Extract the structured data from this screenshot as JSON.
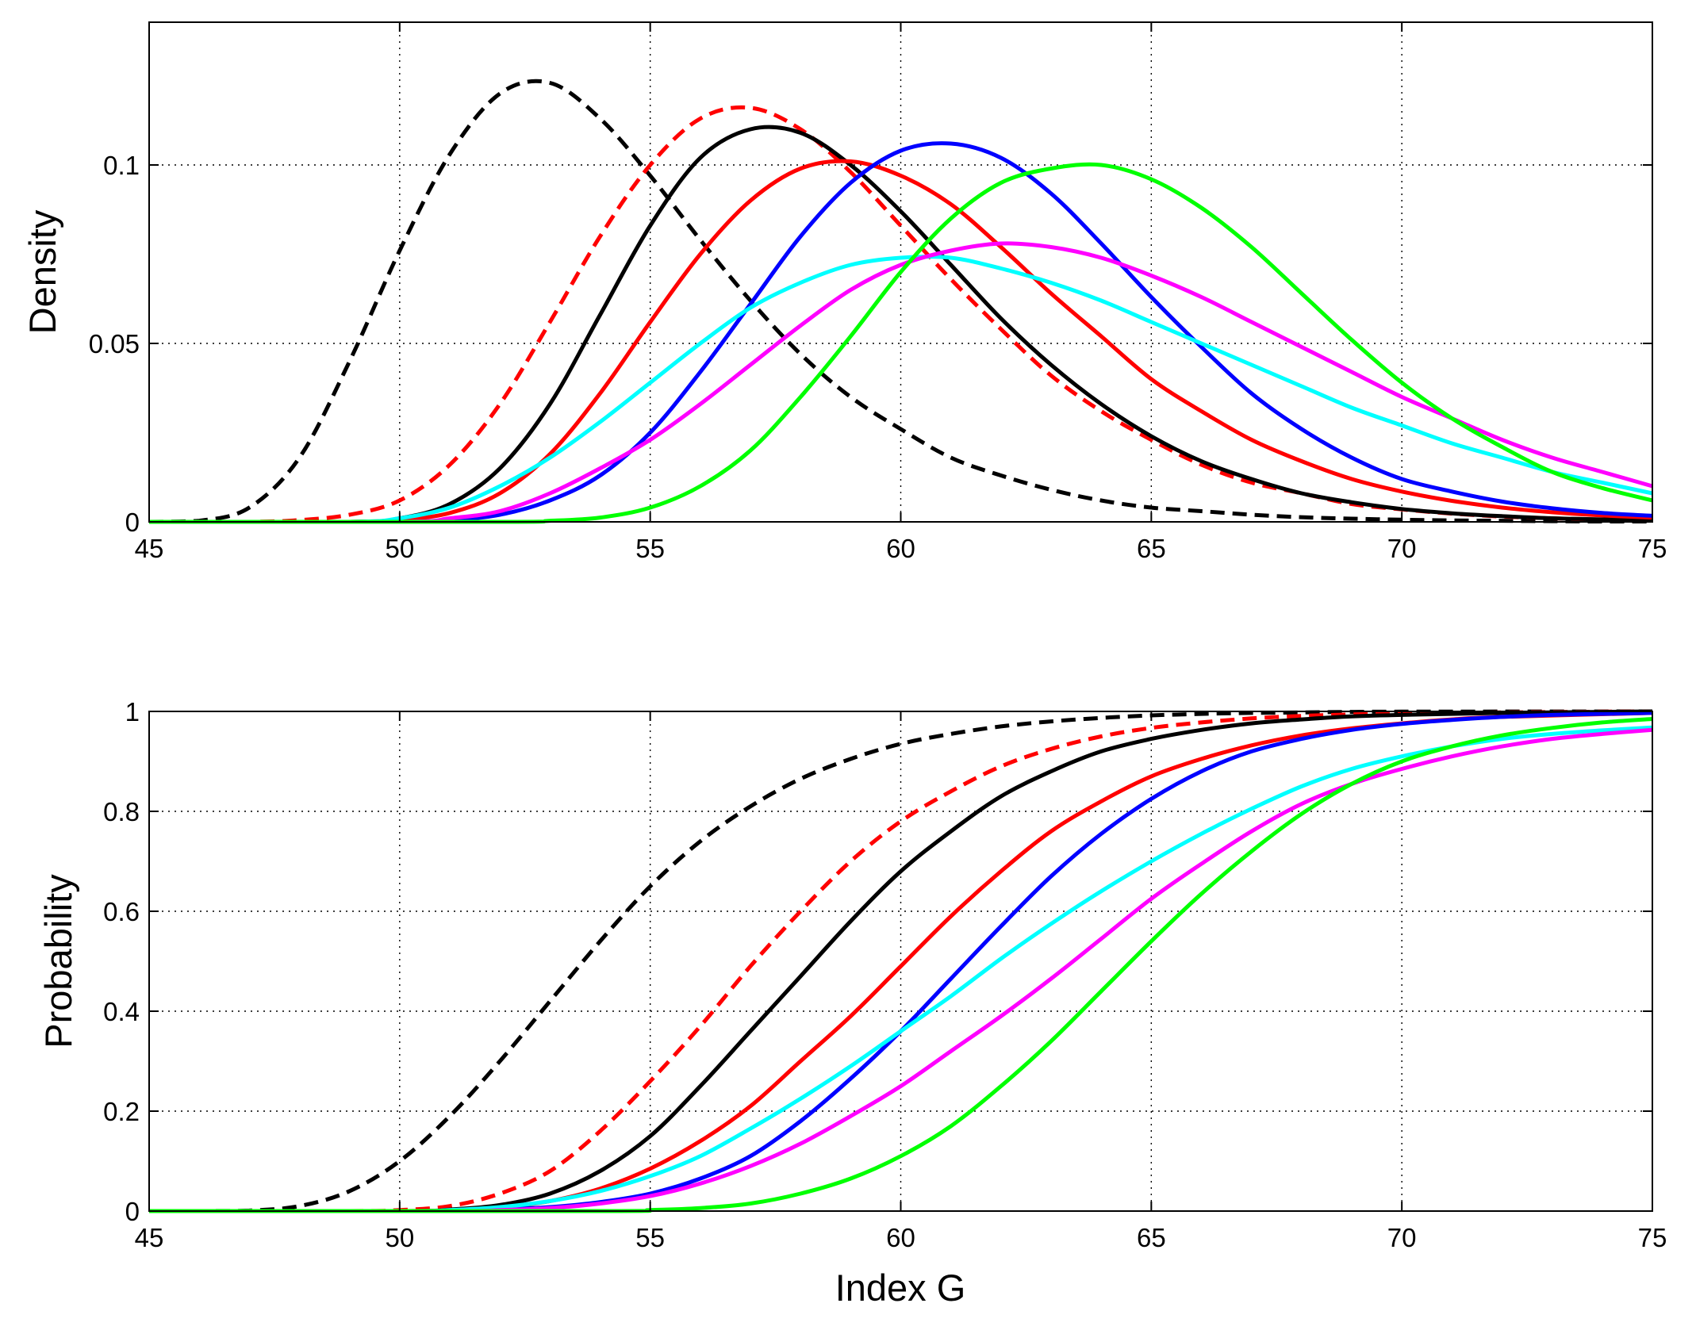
{
  "chart_data": [
    {
      "type": "line",
      "title": "",
      "xlabel": "",
      "ylabel": "Density",
      "xlim": [
        45,
        75
      ],
      "ylim": [
        0,
        0.14
      ],
      "xticks": [
        "45",
        "50",
        "55",
        "60",
        "65",
        "70",
        "75"
      ],
      "yticks": [
        "0",
        "0.05",
        "0.1"
      ],
      "ytick_values": [
        0,
        0.05,
        0.1
      ],
      "grid": true,
      "series": [
        {
          "name": "black-dashed",
          "color": "#000000",
          "style": "dashed",
          "x": [
            45,
            46,
            47,
            48,
            49,
            50,
            51,
            52,
            53,
            54,
            55,
            56,
            57,
            58,
            59,
            60,
            61,
            62,
            63,
            64,
            65,
            66,
            67,
            68,
            69,
            70,
            71,
            72,
            73,
            74,
            75
          ],
          "y": [
            0,
            0.0003,
            0.004,
            0.018,
            0.045,
            0.076,
            0.103,
            0.12,
            0.123,
            0.113,
            0.097,
            0.079,
            0.062,
            0.047,
            0.035,
            0.026,
            0.018,
            0.013,
            0.009,
            0.006,
            0.004,
            0.003,
            0.002,
            0.0013,
            0.0009,
            0.0006,
            0.0004,
            0.0003,
            0.0002,
            0.0001,
            0.0001
          ]
        },
        {
          "name": "red-dashed",
          "color": "#ff0000",
          "style": "dashed",
          "x": [
            45,
            47,
            48,
            49,
            50,
            51,
            52,
            53,
            54,
            55,
            56,
            57,
            58,
            59,
            60,
            61,
            62,
            63,
            64,
            65,
            66,
            67,
            68,
            69,
            70,
            71,
            72,
            73,
            74,
            75
          ],
          "y": [
            0,
            0,
            0.0005,
            0.002,
            0.006,
            0.016,
            0.033,
            0.056,
            0.08,
            0.1,
            0.113,
            0.116,
            0.11,
            0.098,
            0.083,
            0.068,
            0.054,
            0.041,
            0.031,
            0.023,
            0.016,
            0.011,
            0.008,
            0.005,
            0.0035,
            0.0023,
            0.0015,
            0.001,
            0.0006,
            0.0004
          ]
        },
        {
          "name": "black-solid",
          "color": "#000000",
          "style": "solid",
          "x": [
            45,
            49,
            50,
            51,
            52,
            53,
            54,
            55,
            56,
            57,
            58,
            59,
            60,
            61,
            62,
            63,
            64,
            65,
            66,
            67,
            68,
            69,
            70,
            71,
            72,
            73,
            74,
            75
          ],
          "y": [
            0,
            0,
            0.001,
            0.005,
            0.015,
            0.033,
            0.058,
            0.083,
            0.102,
            0.11,
            0.109,
            0.1,
            0.087,
            0.072,
            0.057,
            0.044,
            0.033,
            0.024,
            0.017,
            0.012,
            0.008,
            0.0055,
            0.0036,
            0.0024,
            0.0016,
            0.001,
            0.0007,
            0.0004
          ]
        },
        {
          "name": "red-solid",
          "color": "#ff0000",
          "style": "solid",
          "x": [
            45,
            49,
            50,
            51,
            52,
            53,
            54,
            55,
            56,
            57,
            58,
            59,
            60,
            61,
            62,
            63,
            64,
            65,
            66,
            67,
            68,
            69,
            70,
            71,
            72,
            73,
            74,
            75
          ],
          "y": [
            0,
            0,
            0.0005,
            0.0025,
            0.008,
            0.019,
            0.036,
            0.056,
            0.075,
            0.09,
            0.099,
            0.101,
            0.097,
            0.089,
            0.077,
            0.064,
            0.052,
            0.04,
            0.031,
            0.023,
            0.017,
            0.012,
            0.0085,
            0.0059,
            0.004,
            0.0027,
            0.0018,
            0.0012
          ]
        },
        {
          "name": "blue-solid",
          "color": "#0000ff",
          "style": "solid",
          "x": [
            45,
            50,
            51,
            52,
            53,
            54,
            55,
            56,
            57,
            58,
            59,
            60,
            61,
            62,
            63,
            64,
            65,
            66,
            67,
            68,
            69,
            70,
            71,
            72,
            73,
            74,
            75
          ],
          "y": [
            0,
            0,
            0.0005,
            0.002,
            0.006,
            0.013,
            0.025,
            0.042,
            0.061,
            0.08,
            0.095,
            0.104,
            0.106,
            0.102,
            0.092,
            0.078,
            0.063,
            0.049,
            0.036,
            0.026,
            0.018,
            0.012,
            0.0085,
            0.0057,
            0.0038,
            0.0025,
            0.0017
          ]
        },
        {
          "name": "cyan-solid",
          "color": "#00ffff",
          "style": "solid",
          "x": [
            45,
            49,
            50,
            51,
            52,
            53,
            54,
            55,
            56,
            57,
            58,
            59,
            60,
            61,
            62,
            63,
            64,
            65,
            66,
            67,
            68,
            69,
            70,
            71,
            72,
            73,
            74,
            75
          ],
          "y": [
            0,
            0,
            0.001,
            0.004,
            0.01,
            0.018,
            0.028,
            0.039,
            0.05,
            0.06,
            0.067,
            0.072,
            0.074,
            0.074,
            0.071,
            0.067,
            0.062,
            0.056,
            0.05,
            0.044,
            0.038,
            0.032,
            0.027,
            0.022,
            0.018,
            0.014,
            0.011,
            0.008
          ]
        },
        {
          "name": "magenta-solid",
          "color": "#ff00ff",
          "style": "solid",
          "x": [
            45,
            50,
            51,
            52,
            53,
            54,
            55,
            56,
            57,
            58,
            59,
            60,
            61,
            62,
            63,
            64,
            65,
            66,
            67,
            68,
            69,
            70,
            71,
            72,
            73,
            74,
            75
          ],
          "y": [
            0,
            0,
            0.001,
            0.003,
            0.008,
            0.015,
            0.023,
            0.033,
            0.044,
            0.055,
            0.065,
            0.072,
            0.076,
            0.078,
            0.077,
            0.074,
            0.069,
            0.063,
            0.056,
            0.049,
            0.042,
            0.035,
            0.029,
            0.023,
            0.018,
            0.014,
            0.01
          ]
        },
        {
          "name": "green-solid",
          "color": "#00ff00",
          "style": "solid",
          "x": [
            45,
            52,
            53,
            54,
            55,
            56,
            57,
            58,
            59,
            60,
            61,
            62,
            63,
            64,
            65,
            66,
            67,
            68,
            69,
            70,
            71,
            72,
            73,
            74,
            75
          ],
          "y": [
            0,
            0,
            0.0003,
            0.0012,
            0.004,
            0.01,
            0.02,
            0.035,
            0.052,
            0.07,
            0.085,
            0.095,
            0.099,
            0.1,
            0.096,
            0.088,
            0.077,
            0.064,
            0.051,
            0.039,
            0.029,
            0.021,
            0.014,
            0.0095,
            0.006
          ]
        }
      ]
    },
    {
      "type": "line",
      "title": "",
      "xlabel": "Index G",
      "ylabel": "Probability",
      "xlim": [
        45,
        75
      ],
      "ylim": [
        0,
        1
      ],
      "xticks": [
        "45",
        "50",
        "55",
        "60",
        "65",
        "70",
        "75"
      ],
      "yticks": [
        "0",
        "0.2",
        "0.4",
        "0.6",
        "0.8",
        "1"
      ],
      "ytick_values": [
        0,
        0.2,
        0.4,
        0.6,
        0.8,
        1
      ],
      "grid": true,
      "series": [
        {
          "name": "black-dashed",
          "color": "#000000",
          "style": "dashed",
          "x": [
            45,
            46,
            47,
            48,
            49,
            50,
            51,
            52,
            53,
            54,
            55,
            56,
            57,
            58,
            59,
            60,
            61,
            62,
            63,
            64,
            65,
            66,
            67,
            68,
            69,
            70,
            75
          ],
          "y": [
            0,
            0,
            0.001,
            0.01,
            0.04,
            0.1,
            0.19,
            0.3,
            0.42,
            0.54,
            0.65,
            0.74,
            0.81,
            0.865,
            0.905,
            0.935,
            0.955,
            0.97,
            0.98,
            0.987,
            0.992,
            0.995,
            0.997,
            0.998,
            0.999,
            0.9995,
            1
          ]
        },
        {
          "name": "red-dashed",
          "color": "#ff0000",
          "style": "dashed",
          "x": [
            45,
            49,
            50,
            51,
            52,
            53,
            54,
            55,
            56,
            57,
            58,
            59,
            60,
            61,
            62,
            63,
            64,
            65,
            66,
            67,
            68,
            69,
            70,
            72,
            75
          ],
          "y": [
            0,
            0,
            0.002,
            0.01,
            0.035,
            0.08,
            0.16,
            0.26,
            0.37,
            0.49,
            0.6,
            0.7,
            0.78,
            0.84,
            0.89,
            0.925,
            0.95,
            0.967,
            0.978,
            0.986,
            0.991,
            0.994,
            0.996,
            0.998,
            1
          ]
        },
        {
          "name": "black-solid",
          "color": "#000000",
          "style": "solid",
          "x": [
            45,
            50,
            51,
            52,
            53,
            54,
            55,
            56,
            57,
            58,
            59,
            60,
            61,
            62,
            63,
            64,
            65,
            66,
            67,
            68,
            69,
            70,
            72,
            75
          ],
          "y": [
            0,
            0,
            0.003,
            0.012,
            0.035,
            0.08,
            0.15,
            0.25,
            0.36,
            0.47,
            0.58,
            0.68,
            0.76,
            0.83,
            0.88,
            0.92,
            0.945,
            0.963,
            0.976,
            0.984,
            0.99,
            0.993,
            0.997,
            1
          ]
        },
        {
          "name": "red-solid",
          "color": "#ff0000",
          "style": "solid",
          "x": [
            45,
            50,
            51,
            52,
            53,
            54,
            55,
            56,
            57,
            58,
            59,
            60,
            61,
            62,
            63,
            64,
            65,
            66,
            67,
            68,
            69,
            70,
            71,
            72,
            75
          ],
          "y": [
            0,
            0,
            0.002,
            0.007,
            0.02,
            0.045,
            0.085,
            0.14,
            0.21,
            0.3,
            0.39,
            0.49,
            0.59,
            0.68,
            0.76,
            0.82,
            0.87,
            0.905,
            0.932,
            0.952,
            0.966,
            0.976,
            0.984,
            0.989,
            0.997
          ]
        },
        {
          "name": "blue-solid",
          "color": "#0000ff",
          "style": "solid",
          "x": [
            45,
            51,
            52,
            53,
            54,
            55,
            56,
            57,
            58,
            59,
            60,
            61,
            62,
            63,
            64,
            65,
            66,
            67,
            68,
            69,
            70,
            71,
            72,
            73,
            75
          ],
          "y": [
            0,
            0,
            0.003,
            0.008,
            0.018,
            0.035,
            0.065,
            0.11,
            0.18,
            0.265,
            0.36,
            0.465,
            0.57,
            0.67,
            0.755,
            0.825,
            0.88,
            0.92,
            0.945,
            0.963,
            0.975,
            0.983,
            0.989,
            0.993,
            0.997
          ]
        },
        {
          "name": "cyan-solid",
          "color": "#00ffff",
          "style": "solid",
          "x": [
            45,
            50,
            51,
            52,
            53,
            54,
            55,
            56,
            57,
            58,
            59,
            60,
            61,
            62,
            63,
            64,
            65,
            66,
            67,
            68,
            69,
            70,
            71,
            72,
            73,
            74,
            75
          ],
          "y": [
            0,
            0,
            0.002,
            0.008,
            0.02,
            0.04,
            0.07,
            0.11,
            0.165,
            0.225,
            0.29,
            0.36,
            0.43,
            0.505,
            0.575,
            0.64,
            0.7,
            0.755,
            0.805,
            0.85,
            0.885,
            0.91,
            0.93,
            0.945,
            0.955,
            0.962,
            0.968
          ]
        },
        {
          "name": "magenta-solid",
          "color": "#ff00ff",
          "style": "solid",
          "x": [
            45,
            51,
            52,
            53,
            54,
            55,
            56,
            57,
            58,
            59,
            60,
            61,
            62,
            63,
            64,
            65,
            66,
            67,
            68,
            69,
            70,
            71,
            72,
            73,
            74,
            75
          ],
          "y": [
            0,
            0,
            0.002,
            0.006,
            0.015,
            0.03,
            0.055,
            0.09,
            0.135,
            0.19,
            0.25,
            0.32,
            0.39,
            0.465,
            0.545,
            0.625,
            0.695,
            0.76,
            0.815,
            0.855,
            0.885,
            0.91,
            0.93,
            0.945,
            0.955,
            0.963
          ]
        },
        {
          "name": "green-solid",
          "color": "#00ff00",
          "style": "solid",
          "x": [
            45,
            54,
            55,
            56,
            57,
            58,
            59,
            60,
            61,
            62,
            63,
            64,
            65,
            66,
            67,
            68,
            69,
            70,
            71,
            72,
            73,
            74,
            75
          ],
          "y": [
            0,
            0,
            0.002,
            0.006,
            0.015,
            0.035,
            0.065,
            0.11,
            0.17,
            0.25,
            0.34,
            0.44,
            0.54,
            0.635,
            0.72,
            0.795,
            0.855,
            0.9,
            0.93,
            0.952,
            0.967,
            0.978,
            0.985
          ]
        }
      ]
    }
  ]
}
